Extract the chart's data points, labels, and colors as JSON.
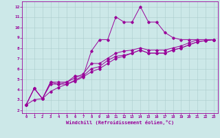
{
  "xlabel": "Windchill (Refroidissement éolien,°C)",
  "bg_color": "#cce8e8",
  "line_color": "#990099",
  "grid_color": "#aacccc",
  "x_ticks": [
    0,
    1,
    2,
    3,
    4,
    5,
    6,
    7,
    8,
    9,
    10,
    11,
    12,
    13,
    14,
    15,
    16,
    17,
    18,
    19,
    20,
    21,
    22,
    23
  ],
  "y_ticks": [
    2,
    3,
    4,
    5,
    6,
    7,
    8,
    9,
    10,
    11,
    12
  ],
  "ylim": [
    1.7,
    12.5
  ],
  "xlim": [
    -0.5,
    23.5
  ],
  "line1_x": [
    0,
    1,
    2,
    3,
    4,
    5,
    6,
    7,
    8,
    9,
    10,
    11,
    12,
    13,
    14,
    15,
    16,
    17,
    18,
    19,
    20,
    21,
    22,
    23
  ],
  "line1_y": [
    2.5,
    4.1,
    3.1,
    4.7,
    4.7,
    4.7,
    5.3,
    5.3,
    7.7,
    8.8,
    8.8,
    11.0,
    10.5,
    10.5,
    12.0,
    10.5,
    10.5,
    9.5,
    9.0,
    8.8,
    8.8,
    8.8,
    8.8,
    8.8
  ],
  "line2_x": [
    0,
    1,
    2,
    3,
    4,
    5,
    6,
    7,
    8,
    9,
    10,
    11,
    12,
    13,
    14,
    15,
    16,
    17,
    18,
    19,
    20,
    21,
    22,
    23
  ],
  "line2_y": [
    2.5,
    4.1,
    3.1,
    4.7,
    4.5,
    4.7,
    5.1,
    5.5,
    6.5,
    6.5,
    7.0,
    7.5,
    7.7,
    7.8,
    8.0,
    7.8,
    7.8,
    7.8,
    8.0,
    8.2,
    8.5,
    8.8,
    8.8,
    8.8
  ],
  "line3_x": [
    0,
    1,
    2,
    3,
    4,
    5,
    6,
    7,
    8,
    9,
    10,
    11,
    12,
    13,
    14,
    15,
    16,
    17,
    18,
    19,
    20,
    21,
    22,
    23
  ],
  "line3_y": [
    2.5,
    4.1,
    3.1,
    4.5,
    4.5,
    4.5,
    4.9,
    5.3,
    6.0,
    6.2,
    6.8,
    7.2,
    7.3,
    7.5,
    7.8,
    7.5,
    7.5,
    7.5,
    7.8,
    8.0,
    8.3,
    8.6,
    8.7,
    8.8
  ],
  "line4_x": [
    0,
    1,
    2,
    3,
    4,
    5,
    6,
    7,
    8,
    9,
    10,
    11,
    12,
    13,
    14,
    15,
    16,
    17,
    18,
    19,
    20,
    21,
    22,
    23
  ],
  "line4_y": [
    2.5,
    3.0,
    3.1,
    3.8,
    4.2,
    4.5,
    4.8,
    5.2,
    5.7,
    6.0,
    6.5,
    7.0,
    7.2,
    7.5,
    7.8,
    7.5,
    7.5,
    7.5,
    7.8,
    8.0,
    8.3,
    8.6,
    8.7,
    8.8
  ]
}
